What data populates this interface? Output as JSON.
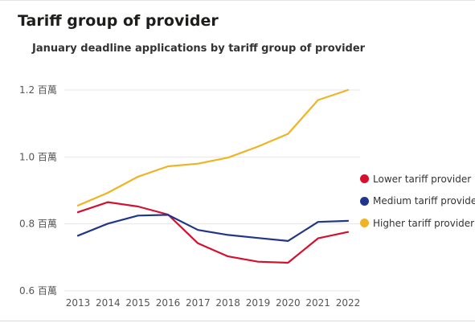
{
  "panel": {
    "title": "Tariff group of provider"
  },
  "chart_data": {
    "type": "line",
    "title": "January deadline applications by tariff group of provider",
    "xlabel": "",
    "ylabel": "",
    "x": [
      "2013",
      "2014",
      "2015",
      "2016",
      "2017",
      "2018",
      "2019",
      "2020",
      "2021",
      "2022"
    ],
    "ylim": [
      0.6,
      1.2
    ],
    "yticks": [
      {
        "value": 0.6,
        "label": "0.6 百萬"
      },
      {
        "value": 0.8,
        "label": "0.8 百萬"
      },
      {
        "value": 1.0,
        "label": "1.0 百萬"
      },
      {
        "value": 1.2,
        "label": "1.2 百萬"
      }
    ],
    "grid": true,
    "legend_position": "right",
    "series": [
      {
        "name": "Lower tariff provider",
        "color": "#d4102e",
        "values": [
          0.835,
          0.865,
          0.852,
          0.828,
          0.742,
          0.703,
          0.687,
          0.684,
          0.757,
          0.776
        ]
      },
      {
        "name": "Medium tariff provider",
        "color": "#21368a",
        "values": [
          0.765,
          0.801,
          0.825,
          0.827,
          0.782,
          0.767,
          0.758,
          0.749,
          0.806,
          0.809
        ]
      },
      {
        "name": "Higher tariff provider",
        "color": "#f0b323",
        "values": [
          0.855,
          0.893,
          0.941,
          0.972,
          0.98,
          0.998,
          1.031,
          1.069,
          1.17,
          1.2
        ]
      }
    ]
  }
}
